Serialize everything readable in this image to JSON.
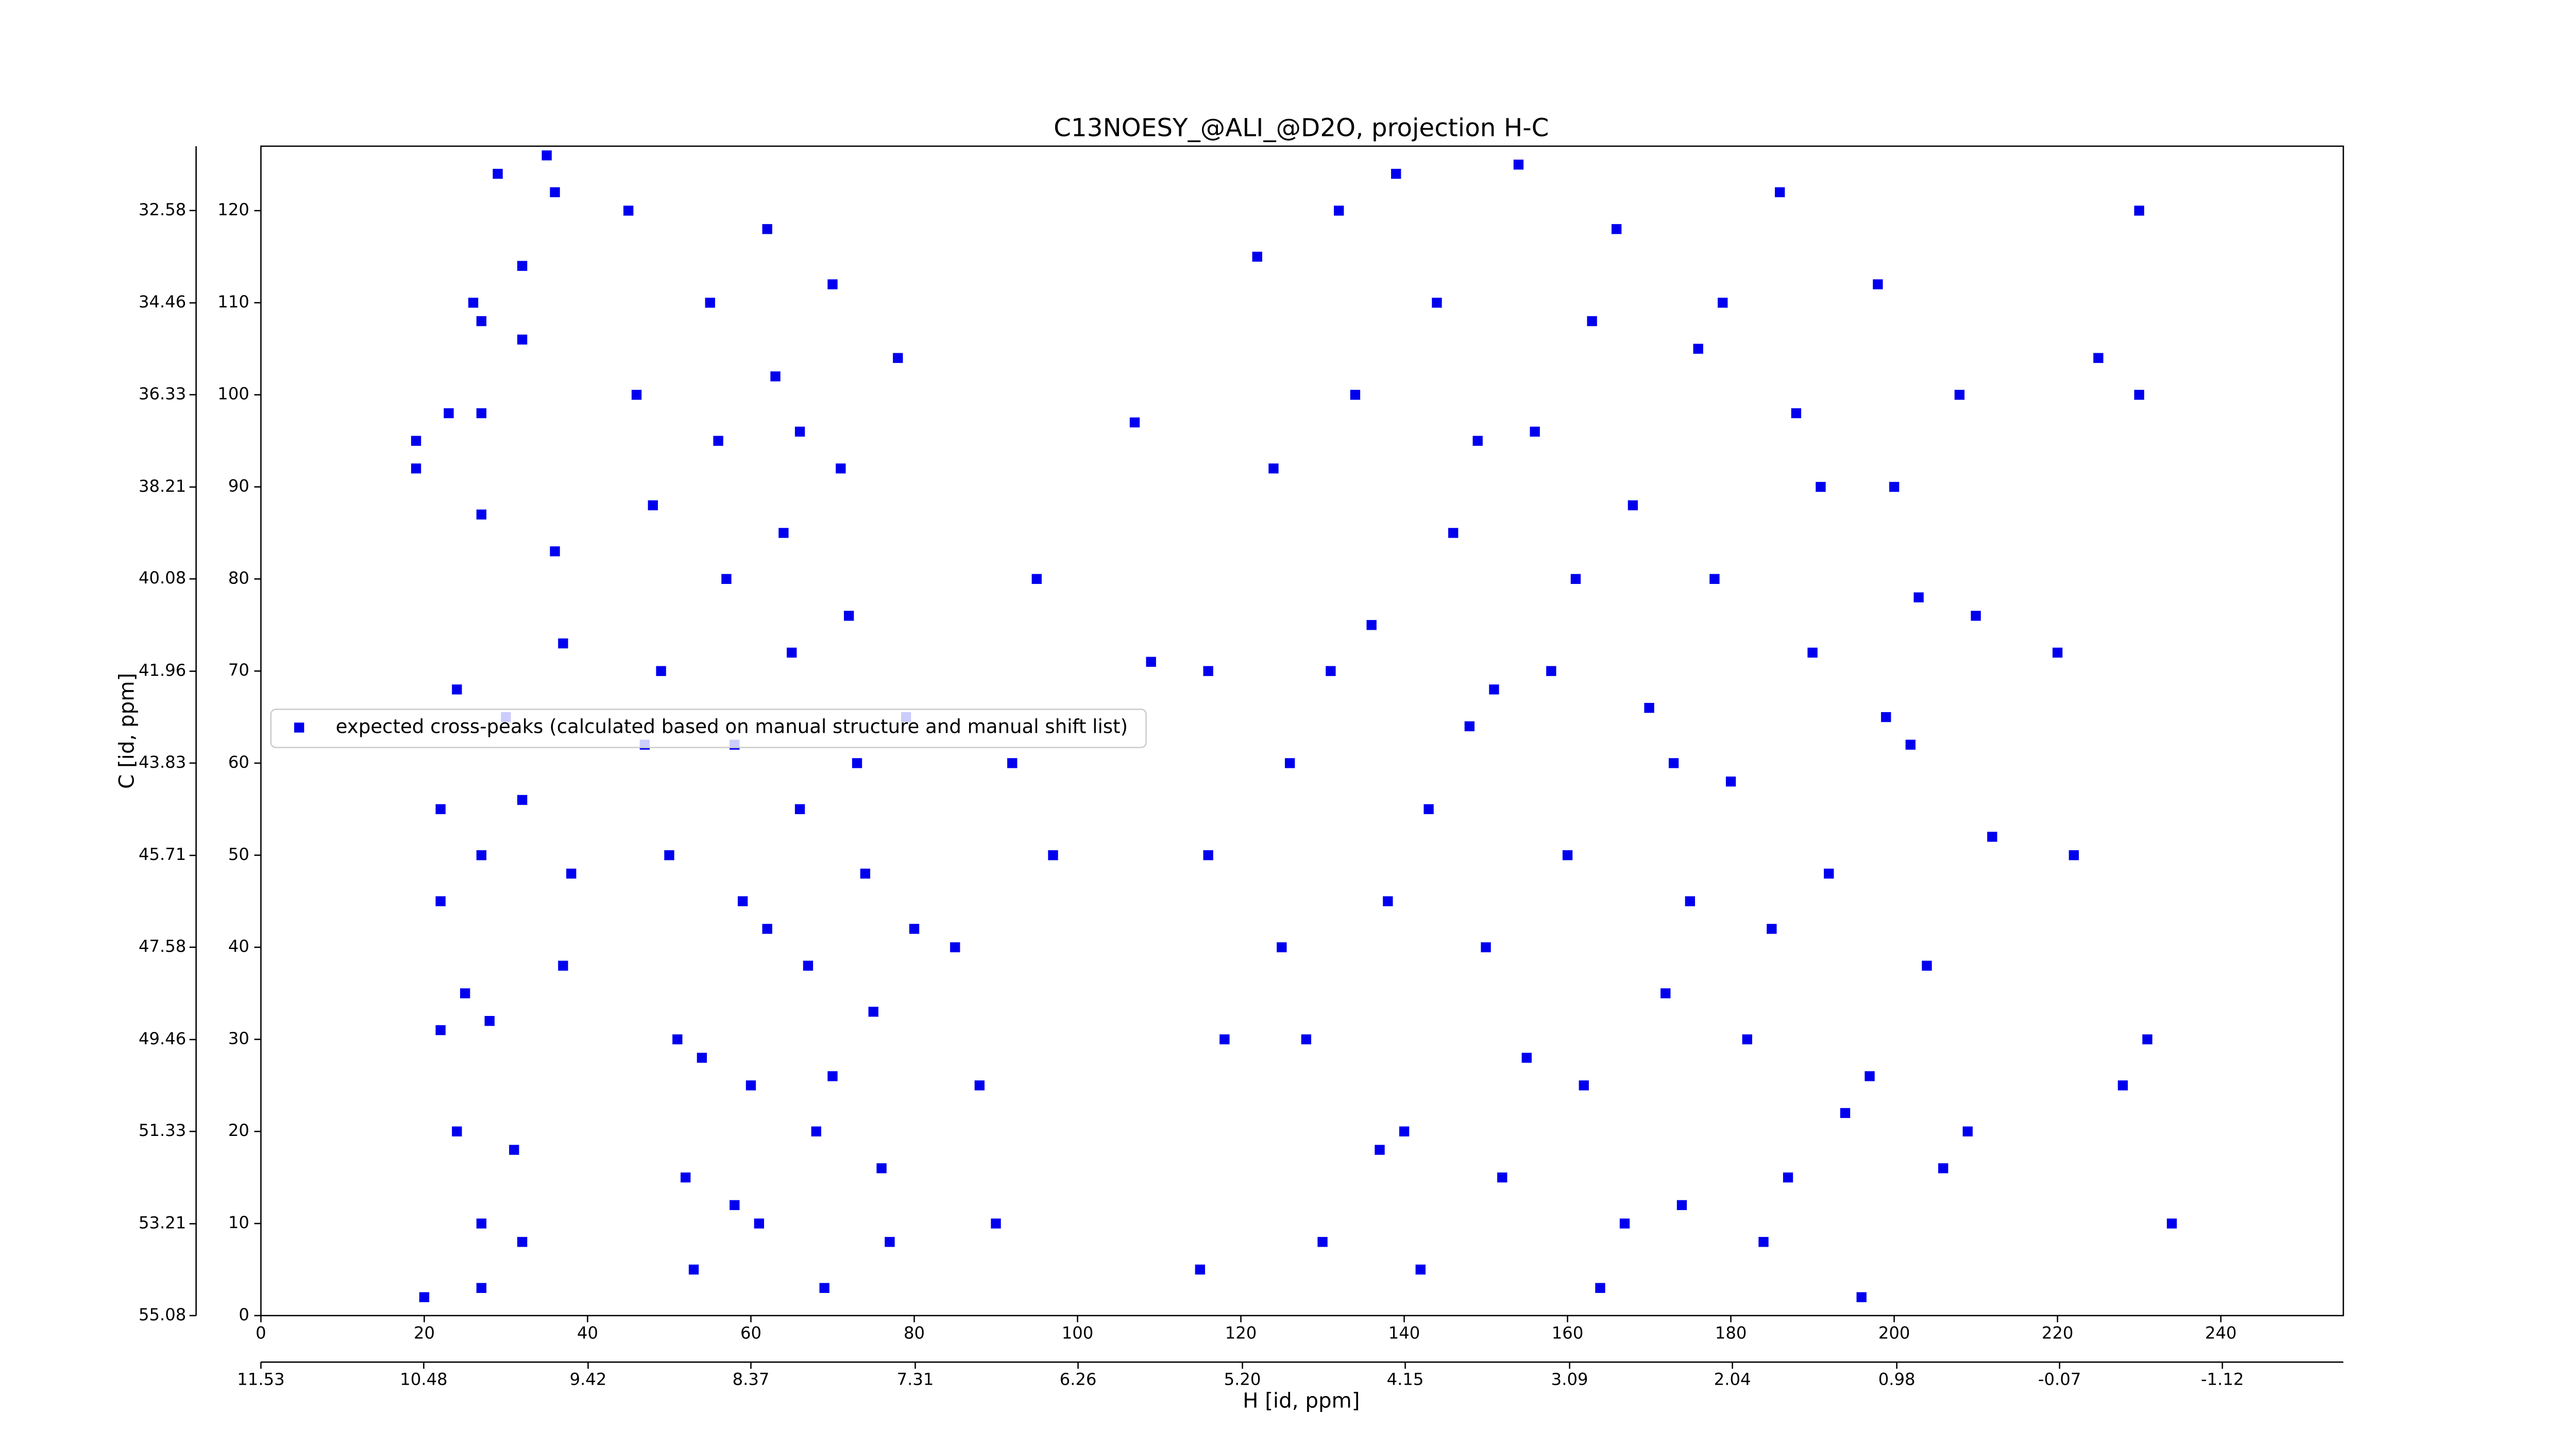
{
  "chart_data": {
    "type": "scatter",
    "title": "C13NOESY_@ALI_@D2O, projection H-C",
    "xlabel": "H [id, ppm]",
    "ylabel": "C [id, ppm]",
    "xlim": [
      0,
      255
    ],
    "ylim": [
      0,
      127
    ],
    "xticks": [
      0,
      20,
      40,
      60,
      80,
      100,
      120,
      140,
      160,
      180,
      200,
      220,
      240
    ],
    "yticks": [
      0,
      10,
      20,
      30,
      40,
      50,
      60,
      70,
      80,
      90,
      100,
      110,
      120
    ],
    "x2lim": [
      11.53,
      -1.9
    ],
    "x2ticks": [
      11.53,
      10.48,
      9.42,
      8.37,
      7.31,
      6.26,
      {
        "value": 5.2,
        "label": "5.20"
      },
      4.15,
      3.09,
      2.04,
      0.98,
      -0.07,
      -1.12
    ],
    "y2lim": [
      55.08,
      31.27
    ],
    "y2ticks": [
      55.08,
      53.21,
      51.33,
      49.46,
      47.58,
      45.71,
      43.83,
      41.96,
      40.08,
      38.21,
      36.33,
      34.46,
      32.58
    ],
    "legend": "center left",
    "series": [
      {
        "name": "expected cross-peaks (calculated based on manual structure and manual shift list)",
        "color": "#0000ee",
        "x": [
          19,
          19,
          20,
          22,
          23,
          22,
          24,
          22,
          25,
          24,
          26,
          27,
          27,
          27,
          27,
          27,
          27,
          28,
          29,
          30,
          31,
          32,
          32,
          32,
          32,
          35,
          36,
          36,
          37,
          37,
          38,
          45,
          46,
          48,
          49,
          50,
          51,
          52,
          53,
          55,
          56,
          57,
          58,
          59,
          60,
          61,
          62,
          63,
          64,
          65,
          66,
          67,
          68,
          69,
          70,
          71,
          72,
          73,
          74,
          75,
          76,
          77,
          78,
          79,
          80,
          47,
          54,
          58,
          62,
          66,
          70,
          85,
          88,
          90,
          92,
          95,
          97,
          107,
          109,
          116,
          115,
          116,
          118,
          122,
          124,
          126,
          128,
          130,
          132,
          134,
          136,
          138,
          140,
          142,
          144,
          146,
          148,
          150,
          152,
          154,
          156,
          158,
          160,
          162,
          164,
          166,
          168,
          170,
          172,
          174,
          176,
          178,
          180,
          182,
          184,
          186,
          188,
          190,
          192,
          194,
          196,
          198,
          200,
          202,
          204,
          206,
          208,
          210,
          212,
          125,
          131,
          137,
          143,
          149,
          155,
          161,
          167,
          173,
          179,
          185,
          191,
          197,
          203,
          209,
          139,
          151,
          163,
          175,
          187,
          199,
          220,
          222,
          225,
          228,
          230,
          230,
          234,
          231
        ],
        "values": [
          95,
          92,
          2,
          55,
          98,
          45,
          68,
          31,
          35,
          20,
          110,
          108,
          98,
          87,
          50,
          10,
          3,
          32,
          124,
          65,
          18,
          114,
          106,
          56,
          8,
          126,
          122,
          83,
          73,
          38,
          48,
          120,
          100,
          88,
          70,
          50,
          30,
          15,
          5,
          110,
          95,
          80,
          62,
          45,
          25,
          10,
          118,
          102,
          85,
          72,
          55,
          38,
          20,
          3,
          112,
          92,
          76,
          60,
          48,
          33,
          16,
          8,
          104,
          65,
          42,
          62,
          28,
          12,
          42,
          96,
          26,
          40,
          25,
          10,
          60,
          80,
          50,
          97,
          71,
          70,
          5,
          50,
          30,
          115,
          92,
          60,
          30,
          8,
          120,
          100,
          75,
          45,
          20,
          5,
          110,
          85,
          64,
          40,
          15,
          125,
          96,
          70,
          50,
          25,
          3,
          118,
          88,
          66,
          35,
          12,
          105,
          80,
          58,
          30,
          8,
          122,
          98,
          72,
          48,
          22,
          2,
          112,
          90,
          62,
          38,
          16,
          100,
          76,
          52,
          40,
          70,
          18,
          55,
          95,
          28,
          80,
          10,
          60,
          110,
          42,
          90,
          26,
          78,
          20,
          124,
          68,
          108,
          45,
          15,
          65,
          72,
          50,
          104,
          25,
          100,
          120,
          10,
          30
        ]
      }
    ]
  }
}
